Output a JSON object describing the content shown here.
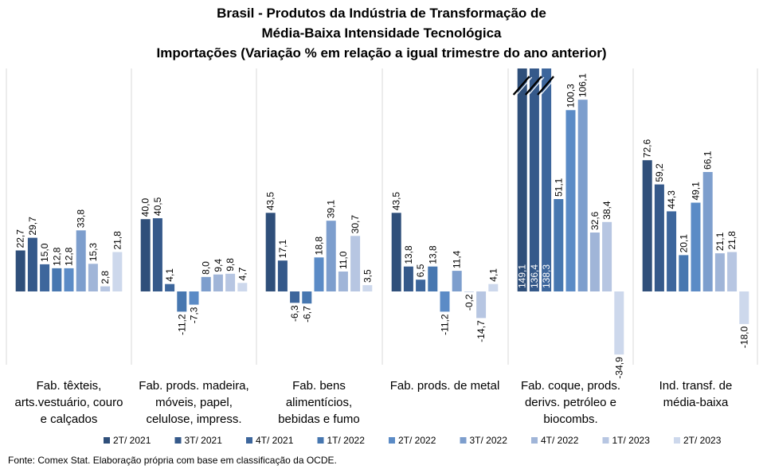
{
  "title_lines": [
    "Brasil - Produtos da Indústria de Transformação de",
    "Média-Baixa Intensidade Tecnológica",
    "Importações (Variação % em relação a igual trimestre do ano anterior)"
  ],
  "source": "Fonte: Comex Stat. Elaboração própria com base em classificação da OCDE.",
  "chart_data": {
    "type": "bar",
    "title": "Brasil - Produtos da Indústria de Transformação de Média-Baixa Intensidade Tecnológica Importações (Variação % em relação a igual trimestre do ano anterior)",
    "xlabel": "",
    "ylabel": "",
    "grid": false,
    "legend_position": "bottom",
    "broken_axis_note": "values 149,1; 136,4; 138,3 exceed the plot area and are drawn truncated with break marks",
    "categories": [
      [
        "Fab. têxteis,",
        "arts.vestuário, couro",
        "e calçados"
      ],
      [
        "Fab. prods. madeira,",
        "móveis, papel,",
        "celulose, impress."
      ],
      [
        "Fab. bens",
        "alimentícios,",
        "bebidas e fumo"
      ],
      [
        "Fab. prods. de metal"
      ],
      [
        "Fab. coque, prods.",
        "derivs. petróleo e",
        "biocombs."
      ],
      [
        "Ind. transf. de",
        "média-baixa"
      ]
    ],
    "series": [
      {
        "name": "2T/ 2021",
        "color": "#2f4f7a",
        "values": [
          22.7,
          40.0,
          43.5,
          43.5,
          149.1,
          72.6
        ],
        "labels": [
          "22,7",
          "40,0",
          "43,5",
          "43,5",
          "149,1",
          "72,6"
        ]
      },
      {
        "name": "3T/ 2021",
        "color": "#35598a",
        "values": [
          29.7,
          40.5,
          17.1,
          13.8,
          136.4,
          59.2
        ],
        "labels": [
          "29,7",
          "40,5",
          "17,1",
          "13,8",
          "136,4",
          "59,2"
        ]
      },
      {
        "name": "4T/ 2021",
        "color": "#3d669c",
        "values": [
          15.0,
          4.1,
          -6.3,
          6.5,
          138.3,
          44.3
        ],
        "labels": [
          "15,0",
          "4,1",
          "-6,3",
          "6,5",
          "138,3",
          "44,3"
        ]
      },
      {
        "name": "1T/ 2022",
        "color": "#4777b0",
        "values": [
          12.8,
          -11.2,
          -6.7,
          13.8,
          51.1,
          20.1
        ],
        "labels": [
          "12,8",
          "-11,2",
          "-6,7",
          "13,8",
          "51,1",
          "20,1"
        ]
      },
      {
        "name": "2T/ 2022",
        "color": "#5b8bc6",
        "values": [
          12.8,
          -7.3,
          18.8,
          -11.2,
          100.3,
          49.1
        ],
        "labels": [
          "12,8",
          "-7,3",
          "18,8",
          "-11,2",
          "100,3",
          "49,1"
        ]
      },
      {
        "name": "3T/ 2022",
        "color": "#7d9ecd",
        "values": [
          33.8,
          8.0,
          39.1,
          11.4,
          106.1,
          66.1
        ],
        "labels": [
          "33,8",
          "8,0",
          "39,1",
          "11,4",
          "106,1",
          "66,1"
        ]
      },
      {
        "name": "4T/ 2022",
        "color": "#a0b5d8",
        "values": [
          15.3,
          9.4,
          11.0,
          -0.2,
          32.6,
          21.1
        ],
        "labels": [
          "15,3",
          "9,4",
          "11,0",
          "-0,2",
          "32,6",
          "21,1"
        ]
      },
      {
        "name": "1T/ 2023",
        "color": "#b7c6e2",
        "values": [
          2.8,
          9.8,
          30.7,
          -14.7,
          38.4,
          21.8
        ],
        "labels": [
          "2,8",
          "9,8",
          "30,7",
          "-14,7",
          "38,4",
          "21,8"
        ]
      },
      {
        "name": "2T/ 2023",
        "color": "#cdd8ec",
        "values": [
          21.8,
          4.7,
          3.5,
          4.1,
          -34.9,
          -18.0
        ],
        "labels": [
          "21,8",
          "4,7",
          "3,5",
          "4,1",
          "-34,9",
          "-18,0"
        ]
      }
    ]
  }
}
